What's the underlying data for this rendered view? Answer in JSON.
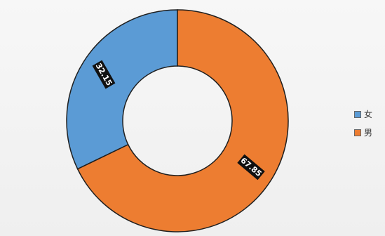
{
  "chart_data": {
    "type": "pie",
    "donut": true,
    "title": "",
    "legend_position": "right",
    "slices": [
      {
        "name": "女",
        "value": 32.15,
        "label": "32.15",
        "color": "#5b9bd5"
      },
      {
        "name": "男",
        "value": 67.85,
        "label": "67.85",
        "color": "#ed7d31"
      }
    ]
  }
}
